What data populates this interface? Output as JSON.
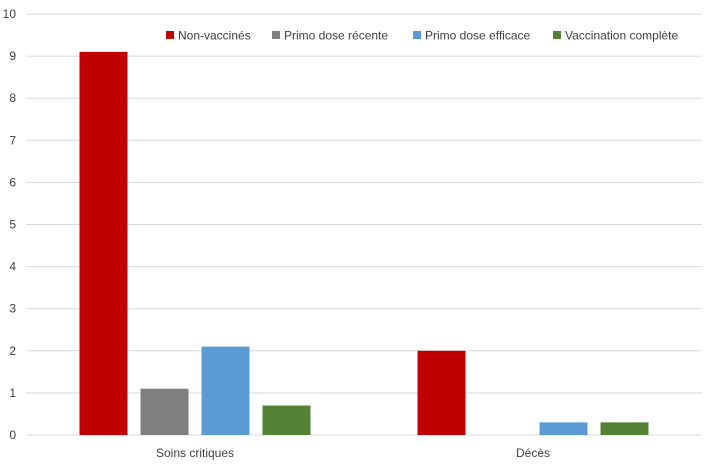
{
  "chart_data": {
    "type": "bar",
    "categories": [
      "Soins critiques",
      "Décès"
    ],
    "series": [
      {
        "name": "Non-vaccinés",
        "values": [
          9.1,
          2.0
        ],
        "color": "#c00000"
      },
      {
        "name": "Primo dose récente",
        "values": [
          1.1,
          0
        ],
        "color": "#808080"
      },
      {
        "name": "Primo dose efficace",
        "values": [
          2.1,
          0.3
        ],
        "color": "#5b9bd5"
      },
      {
        "name": "Vaccination complète",
        "values": [
          0.7,
          0.3
        ],
        "color": "#548235"
      }
    ],
    "ylim": [
      0,
      10
    ],
    "yticks": [
      "0",
      "1",
      "2",
      "3",
      "4",
      "5",
      "6",
      "7",
      "8",
      "9",
      "10"
    ],
    "title": "",
    "xlabel": "",
    "ylabel": "",
    "grid": true,
    "legend_position": "top-right"
  },
  "colors": {
    "gridline": "#d9d9d9",
    "axis_text": "#404040"
  }
}
